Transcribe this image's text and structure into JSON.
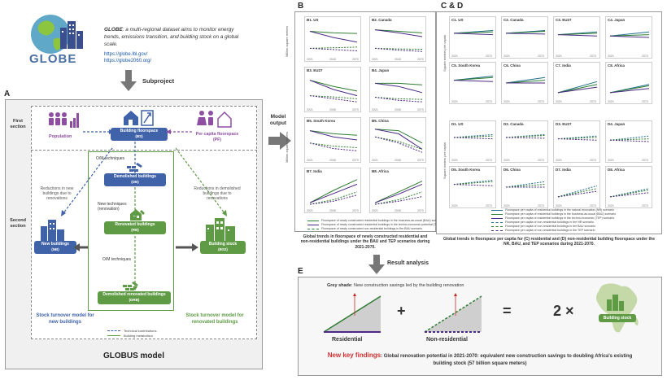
{
  "globe": {
    "logo_text": "GLOBE",
    "tagline_bold": "GLOBE",
    "tagline": ": a multi-regional dataset aims to monitor energy trends, emissions transition, and building stock on a global scale.",
    "link1": "https://globe.lbl.gov/",
    "link2": "https://globe2060.org/"
  },
  "subproject": "Subproject",
  "panelA": {
    "letter": "A",
    "first_section": "First\nsection",
    "second_section": "Second\nsection",
    "population": "Population",
    "building_floorspace": "Building floorspace",
    "building_floorspace_sub": "(BS)",
    "per_capita": "Per capita floorspace",
    "per_capita_sub": "(PF)",
    "om_techniques": "O/M techniques",
    "demolished_buildings": "Demolished buildings",
    "demolished_sub": "(DB)",
    "new_techniques": "New techniques (renovation)",
    "renovated_buildings": "Renovated buildings",
    "renovated_sub": "(RB)",
    "om_techniques2": "O/M techniques",
    "demolished_renovated": "Demolished renovated buildings",
    "demolished_renovated_sub": "(DRB)",
    "new_buildings": "New buildings",
    "new_buildings_sub": "(NB)",
    "building_stock": "Building stock",
    "building_stock_sub": "(BS2)",
    "reductions_left": "Reductions in new buildings due to renovations",
    "reductions_right": "Reductions in demolished buildings due to renovations",
    "stock_new": "Stock turnover model for\nnew buildings",
    "stock_renovated": "Stock turnover model for\nrenovated buildings",
    "legend_technical": "Technical contributions",
    "legend_building": "Building metabolism",
    "model_name": "GLOBUS model"
  },
  "model_output": "Model\noutput",
  "panelB": {
    "letter": "B",
    "charts": [
      "B1. US",
      "B2. Canada",
      "B3. EU27",
      "B4. Japan",
      "B5. South Korea",
      "B6. China",
      "B7. India",
      "B8. Africa"
    ],
    "ylabel_top": "Million square meters",
    "ylabel_bottom": "Million square meters",
    "x_ticks": [
      "2021",
      "2045",
      "2070"
    ],
    "legend": [
      "Floorspace of newly constructed residential buildings in the business-as-usual (BAU) scenario",
      "Floorspace of newly constructed residential buildings in the techno-economic potential (TEP) scenario",
      "Floorspace of newly constructed non-residential buildings in the BAU scenario",
      "Floorspace of newly constructed non-residential buildings in the TEP scenario"
    ],
    "caption": "Global trends in floorspace of newly constructed residential and non-residential buildings under the BAU and TEP scenarios during 2021-2070."
  },
  "panelCD": {
    "letter": "C & D",
    "c_charts": [
      "C1. US",
      "C2. Canada",
      "C3. EU27",
      "C4. Japan",
      "C5. South Korea",
      "C6. China",
      "C7. India",
      "C8. Africa"
    ],
    "d_charts": [
      "D1. US",
      "D2. Canada",
      "D3. EU27",
      "D4. Japan",
      "D5. South Korea",
      "D6. China",
      "D7. India",
      "D8. Africa"
    ],
    "ylabel_c": "Square meters per capita",
    "ylabel_d": "Square meters per capita",
    "x_ticks": [
      "2021",
      "2070"
    ],
    "legend": [
      "Floorspace per capita of residential buildings in the natural renovation (NR) scenario",
      "Floorspace per capita of residential buildings in the business-as-usual (BAU) scenario",
      "Floorspace per capita of residential buildings in the techno-economic (TEP) scenario",
      "Floorspace per capita of non-residential buildings in the NR scenario",
      "Floorspace per capita of non-residential buildings in the BAU scenario",
      "Floorspace per capita of non-residential buildings in the TEP scenario"
    ],
    "caption": "Global trends in floorspace per capita for (C) residential and (D) non-residential building floorspace under the NR, BAU, and TEP scenarios during 2021-2070."
  },
  "result_analysis": "Result analysis",
  "panelE": {
    "letter": "E",
    "grey_shade": "Grey shade",
    "grey_shade_rest": ": New construction savings led by the building renovation",
    "residential": "Residential",
    "plus": "+",
    "non_residential": "Non-residential",
    "equals": "=",
    "times": "2 ×",
    "building_stock": "Building stock",
    "findings_label": "New key findings",
    "findings_text": ": Global renovation potential in 2021-2070: equivalent new construction savings to doubling Africa's existing building stock (57 billion square meters)"
  },
  "colors": {
    "blue": "#3f62a8",
    "green": "#5f9a45",
    "purple": "#6a3d9a",
    "red": "#d32f2f",
    "dark_green": "#2e7d32"
  }
}
